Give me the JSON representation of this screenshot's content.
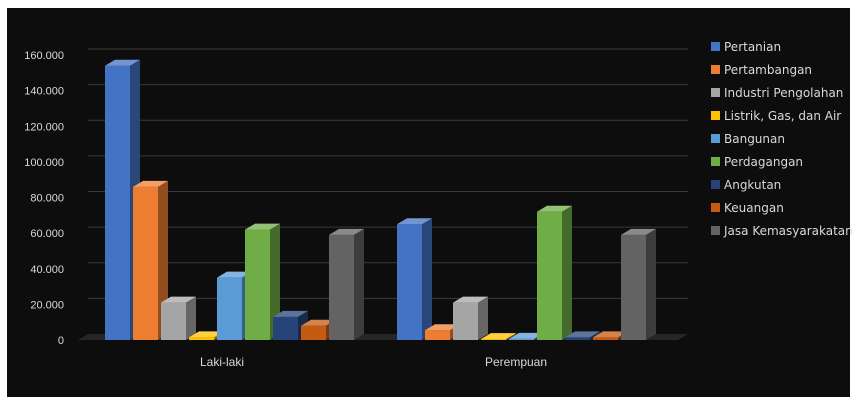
{
  "chart_data": {
    "type": "bar",
    "title": "",
    "xlabel": "",
    "ylabel": "",
    "categories": [
      "Laki-laki",
      "Perempuan"
    ],
    "ylim": [
      0,
      160000
    ],
    "yticks": [
      "0",
      "20.000",
      "40.000",
      "60.000",
      "80.000",
      "100.000",
      "120.000",
      "140.000",
      "160.000"
    ],
    "grid": true,
    "legend_position": "right",
    "series": [
      {
        "name": "Pertanian",
        "color": "#4472c4",
        "values": [
          154000,
          65000
        ]
      },
      {
        "name": "Pertambangan",
        "color": "#ed7d31",
        "values": [
          86000,
          5500
        ]
      },
      {
        "name": "Industri Pengolahan",
        "color": "#a5a5a5",
        "values": [
          21000,
          21000
        ]
      },
      {
        "name": "Listrik, Gas, dan Air",
        "color": "#ffc000",
        "values": [
          1500,
          500
        ]
      },
      {
        "name": "Bangunan",
        "color": "#5b9bd5",
        "values": [
          35000,
          600
        ]
      },
      {
        "name": "Perdagangan",
        "color": "#70ad47",
        "values": [
          62000,
          72000
        ]
      },
      {
        "name": "Angkutan",
        "color": "#264478",
        "values": [
          13000,
          1500
        ]
      },
      {
        "name": "Keuangan",
        "color": "#c55a11",
        "values": [
          8000,
          1500
        ]
      },
      {
        "name": "Jasa Kemasyarakatan",
        "color": "#636363",
        "values": [
          59000,
          59000
        ]
      }
    ]
  }
}
